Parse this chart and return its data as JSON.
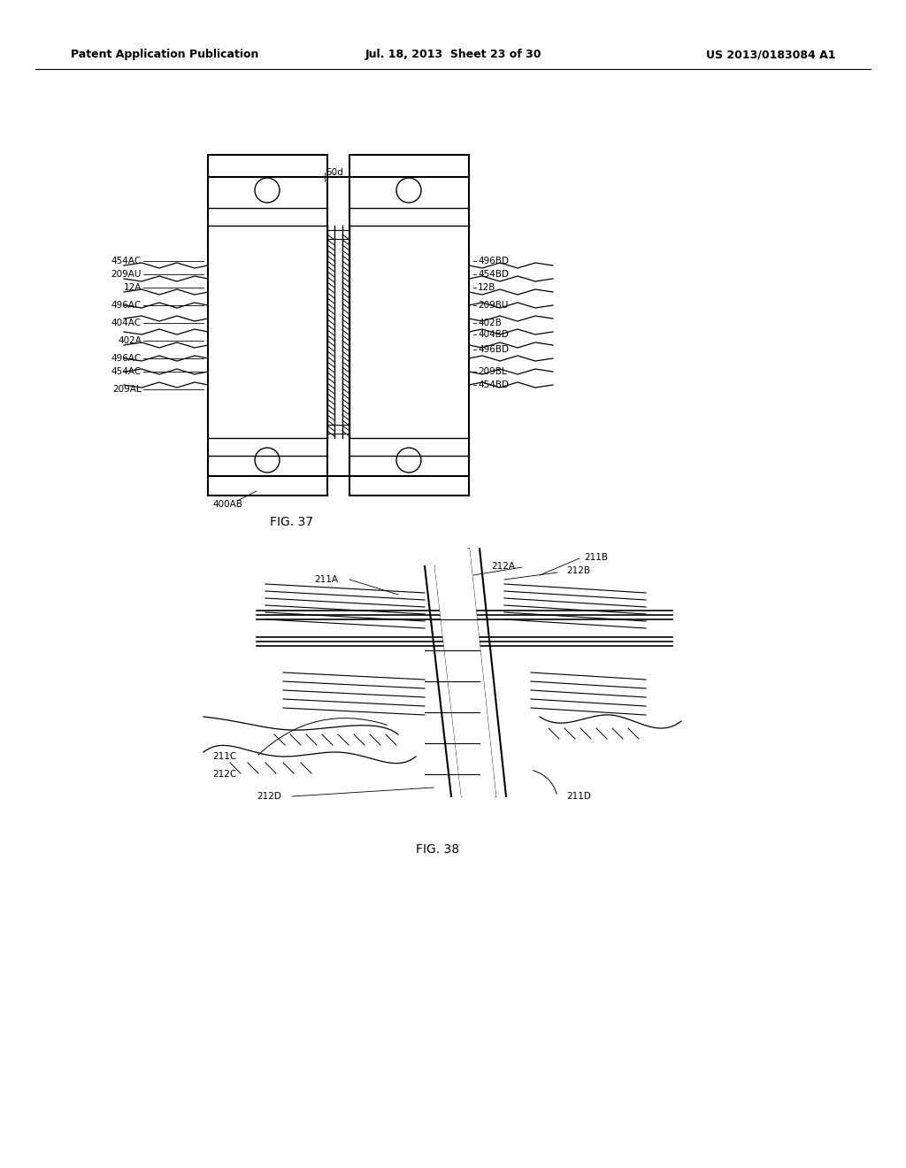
{
  "header_left": "Patent Application Publication",
  "header_mid": "Jul. 18, 2013  Sheet 23 of 30",
  "header_right": "US 2013/0183084 A1",
  "fig37_label": "FIG. 37",
  "fig38_label": "FIG. 38",
  "background": "#ffffff",
  "line_color": "#000000",
  "label_fontsize": 7.5,
  "header_fontsize": 9
}
